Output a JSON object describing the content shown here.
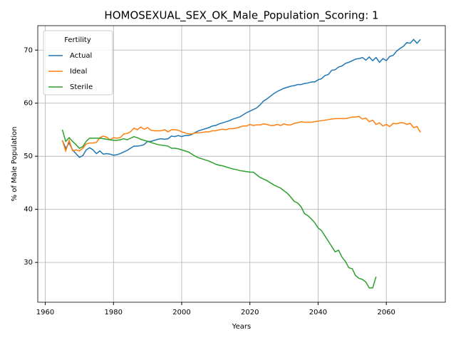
{
  "chart_data": {
    "type": "line",
    "title": "HOMOSEXUAL_SEX_OK_Male_Population_Scoring: 1",
    "x_label": "Years",
    "y_label": "% of Male Population",
    "legend_title": "Fertility",
    "legend_position": "upper left",
    "grid": true,
    "x": [
      1965,
      1966,
      1967,
      1968,
      1969,
      1970,
      1971,
      1972,
      1973,
      1974,
      1975,
      1976,
      1977,
      1978,
      1979,
      1980,
      1981,
      1982,
      1983,
      1984,
      1985,
      1986,
      1987,
      1988,
      1989,
      1990,
      1991,
      1992,
      1993,
      1994,
      1995,
      1996,
      1997,
      1998,
      1999,
      2000,
      2001,
      2002,
      2003,
      2004,
      2005,
      2006,
      2007,
      2008,
      2009,
      2010,
      2011,
      2012,
      2013,
      2014,
      2015,
      2016,
      2017,
      2018,
      2019,
      2020,
      2021,
      2022,
      2023,
      2024,
      2025,
      2026,
      2027,
      2028,
      2029,
      2030,
      2031,
      2032,
      2033,
      2034,
      2035,
      2036,
      2037,
      2038,
      2039,
      2040,
      2041,
      2042,
      2043,
      2044,
      2045,
      2046,
      2047,
      2048,
      2049,
      2050,
      2051,
      2052,
      2053,
      2054,
      2055,
      2056,
      2057,
      2058,
      2059,
      2060,
      2061,
      2062,
      2063,
      2064,
      2065,
      2066,
      2067,
      2068,
      2069,
      2070
    ],
    "series": [
      {
        "name": "Actual",
        "color": "#1f77b4",
        "values": [
          53,
          51.5,
          52.5,
          51.2,
          50.5,
          49.8,
          50.1,
          51.2,
          51.6,
          51.2,
          50.5,
          51,
          50.4,
          50.5,
          50.4,
          50.2,
          50.3,
          50.5,
          50.8,
          51.1,
          51.5,
          51.9,
          51.9,
          52,
          52.2,
          52.8,
          52.8,
          53,
          53.2,
          53.3,
          53.2,
          53.3,
          53.8,
          53.7,
          53.9,
          53.7,
          53.9,
          53.9,
          54.1,
          54.5,
          54.8,
          55,
          55.2,
          55.4,
          55.7,
          55.8,
          56.1,
          56.3,
          56.5,
          56.7,
          57,
          57.2,
          57.4,
          57.8,
          58.2,
          58.5,
          58.8,
          59.1,
          59.7,
          60.4,
          60.8,
          61.3,
          61.8,
          62.2,
          62.5,
          62.8,
          63,
          63.2,
          63.3,
          63.5,
          63.5,
          63.7,
          63.8,
          64,
          64,
          64.4,
          64.6,
          65.2,
          65.4,
          66.2,
          66.3,
          66.8,
          67,
          67.5,
          67.7,
          68,
          68.3,
          68.4,
          68.6,
          68.1,
          68.7,
          68,
          68.6,
          67.7,
          68.4,
          68,
          68.8,
          69,
          69.8,
          70.3,
          70.7,
          71.4,
          71.3,
          72,
          71.3,
          72
        ]
      },
      {
        "name": "Ideal",
        "color": "#ff7f0e",
        "values": [
          53,
          51,
          53,
          51,
          51.2,
          51,
          51.5,
          52.3,
          52.5,
          52.5,
          52.6,
          53.5,
          53.8,
          53.6,
          53.1,
          53.5,
          53.4,
          53.5,
          54.2,
          54.3,
          54.6,
          55.3,
          55,
          55.5,
          55.1,
          55.4,
          54.9,
          54.8,
          54.8,
          54.8,
          55,
          54.6,
          55,
          55,
          54.9,
          54.6,
          54.4,
          54.2,
          54.2,
          54.4,
          54.4,
          54.5,
          54.6,
          54.6,
          54.8,
          54.8,
          55,
          55.1,
          55,
          55.2,
          55.2,
          55.3,
          55.5,
          55.7,
          55.7,
          56,
          55.8,
          55.9,
          55.9,
          56.1,
          56,
          55.8,
          55.8,
          56,
          55.8,
          56.1,
          55.9,
          55.9,
          56.2,
          56.3,
          56.5,
          56.4,
          56.4,
          56.4,
          56.5,
          56.6,
          56.7,
          56.8,
          56.9,
          57,
          57.1,
          57.1,
          57.1,
          57.1,
          57.2,
          57.4,
          57.4,
          57.5,
          57,
          57.2,
          56.5,
          56.8,
          56,
          56.3,
          55.7,
          56,
          55.6,
          56.2,
          56.1,
          56.3,
          56.3,
          56,
          56.2,
          55.4,
          55.6,
          54.5
        ]
      },
      {
        "name": "Sterile",
        "color": "#2ca02c",
        "values": [
          55,
          52.8,
          53.5,
          52.8,
          52.2,
          51.5,
          51.8,
          52.8,
          53.4,
          53.4,
          53.4,
          53.4,
          53.3,
          53.2,
          53.1,
          53,
          53,
          53.1,
          53.3,
          53.1,
          53.4,
          53.7,
          53.5,
          53.2,
          53,
          52.8,
          52.6,
          52.4,
          52.2,
          52.1,
          52,
          51.9,
          51.5,
          51.5,
          51.4,
          51.2,
          51,
          50.8,
          50.4,
          50,
          49.7,
          49.5,
          49.3,
          49.1,
          48.8,
          48.5,
          48.3,
          48.2,
          48,
          47.8,
          47.6,
          47.5,
          47.3,
          47.2,
          47.1,
          47,
          47,
          46.5,
          46,
          45.7,
          45.4,
          45,
          44.6,
          44.3,
          44,
          43.5,
          43,
          42.3,
          41.5,
          41.2,
          40.5,
          39.2,
          38.8,
          38.2,
          37.5,
          36.5,
          36,
          35,
          34,
          33,
          32,
          32.3,
          31,
          30.2,
          29,
          28.8,
          27.5,
          27,
          26.8,
          26.3,
          25.2,
          25.2,
          27.3,
          null,
          null,
          null,
          null,
          null,
          null,
          null,
          null,
          null,
          null,
          null,
          null,
          null
        ]
      }
    ],
    "xlim": [
      1957.8,
      2077.3
    ],
    "xticks": [
      1960,
      1980,
      2000,
      2020,
      2040,
      2060
    ],
    "ylim": [
      22.5,
      74.6
    ],
    "yticks": [
      30,
      40,
      50,
      60,
      70
    ]
  }
}
